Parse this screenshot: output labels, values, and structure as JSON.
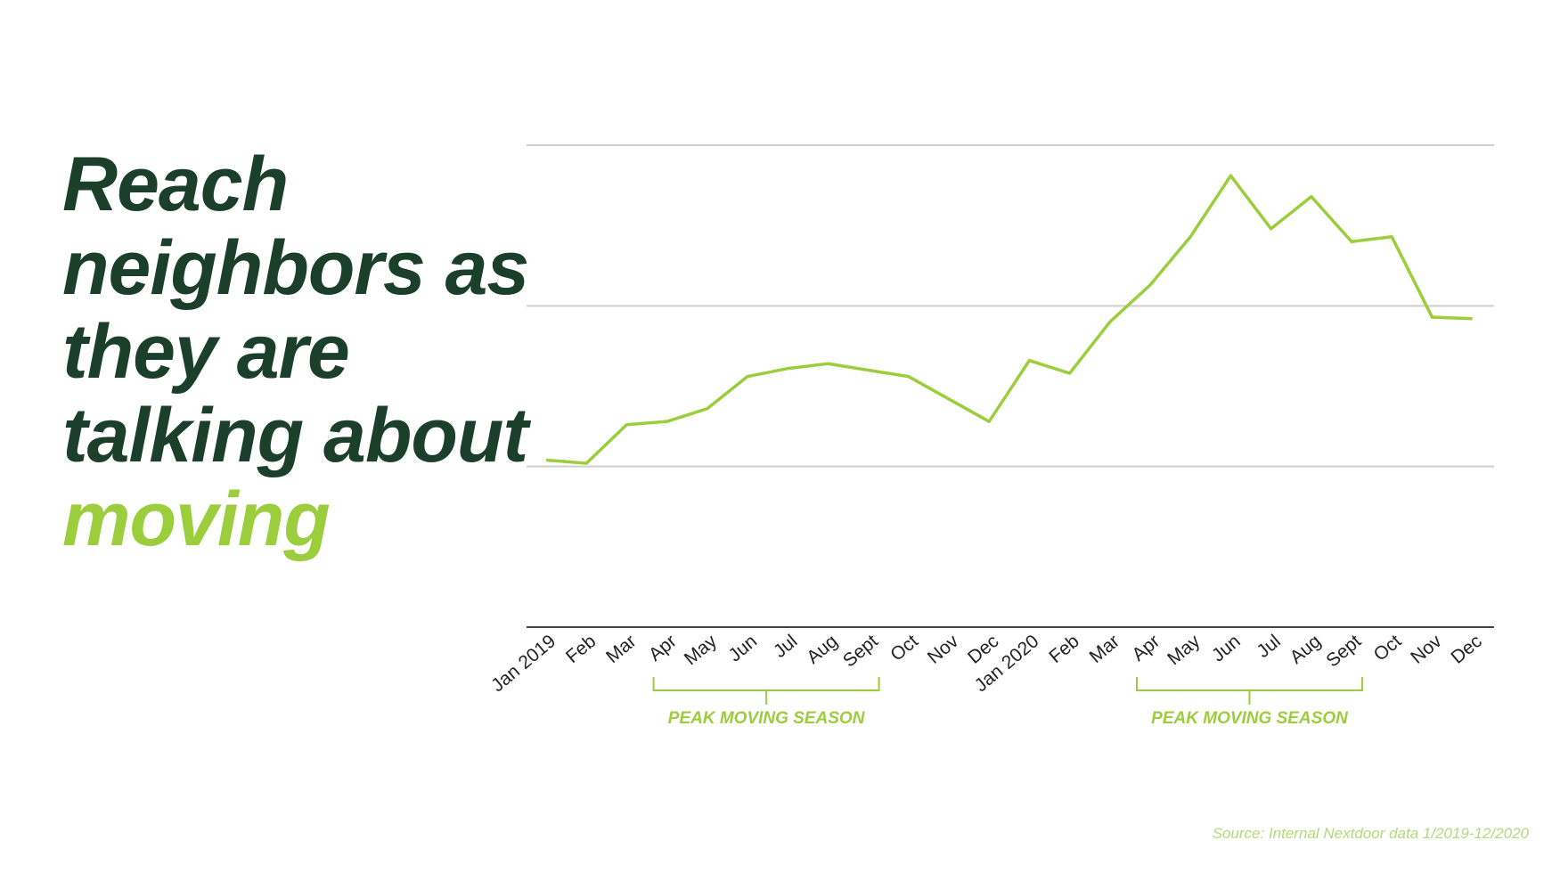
{
  "chart_data": {
    "type": "line",
    "title": "Reach neighbors as they are talking about",
    "title_highlight": "moving",
    "categories": [
      "Jan 2019",
      "Feb",
      "Mar",
      "Apr",
      "May",
      "Jun",
      "Jul",
      "Aug",
      "Sept",
      "Oct",
      "Nov",
      "Dec",
      "Jan 2020",
      "Feb",
      "Mar",
      "Apr",
      "May",
      "Jun",
      "Jul",
      "Aug",
      "Sept",
      "Oct",
      "Nov",
      "Dec"
    ],
    "series": [
      {
        "color": "#9ccd3c",
        "values": [
          1.04,
          1.02,
          1.26,
          1.28,
          1.36,
          1.56,
          1.61,
          1.64,
          1.6,
          1.56,
          1.42,
          1.28,
          1.66,
          1.58,
          1.9,
          2.13,
          2.43,
          2.81,
          2.48,
          2.68,
          2.4,
          2.43,
          1.93,
          1.92
        ]
      }
    ],
    "ylim": [
      0,
      3
    ],
    "yticks": [
      0,
      1,
      2,
      3
    ],
    "grid": true,
    "annotations": [
      "PEAK MOVING SEASON",
      "PEAK MOVING SEASON"
    ],
    "source": "Source: Internal Nextdoor data 1/2019-12/2020"
  }
}
